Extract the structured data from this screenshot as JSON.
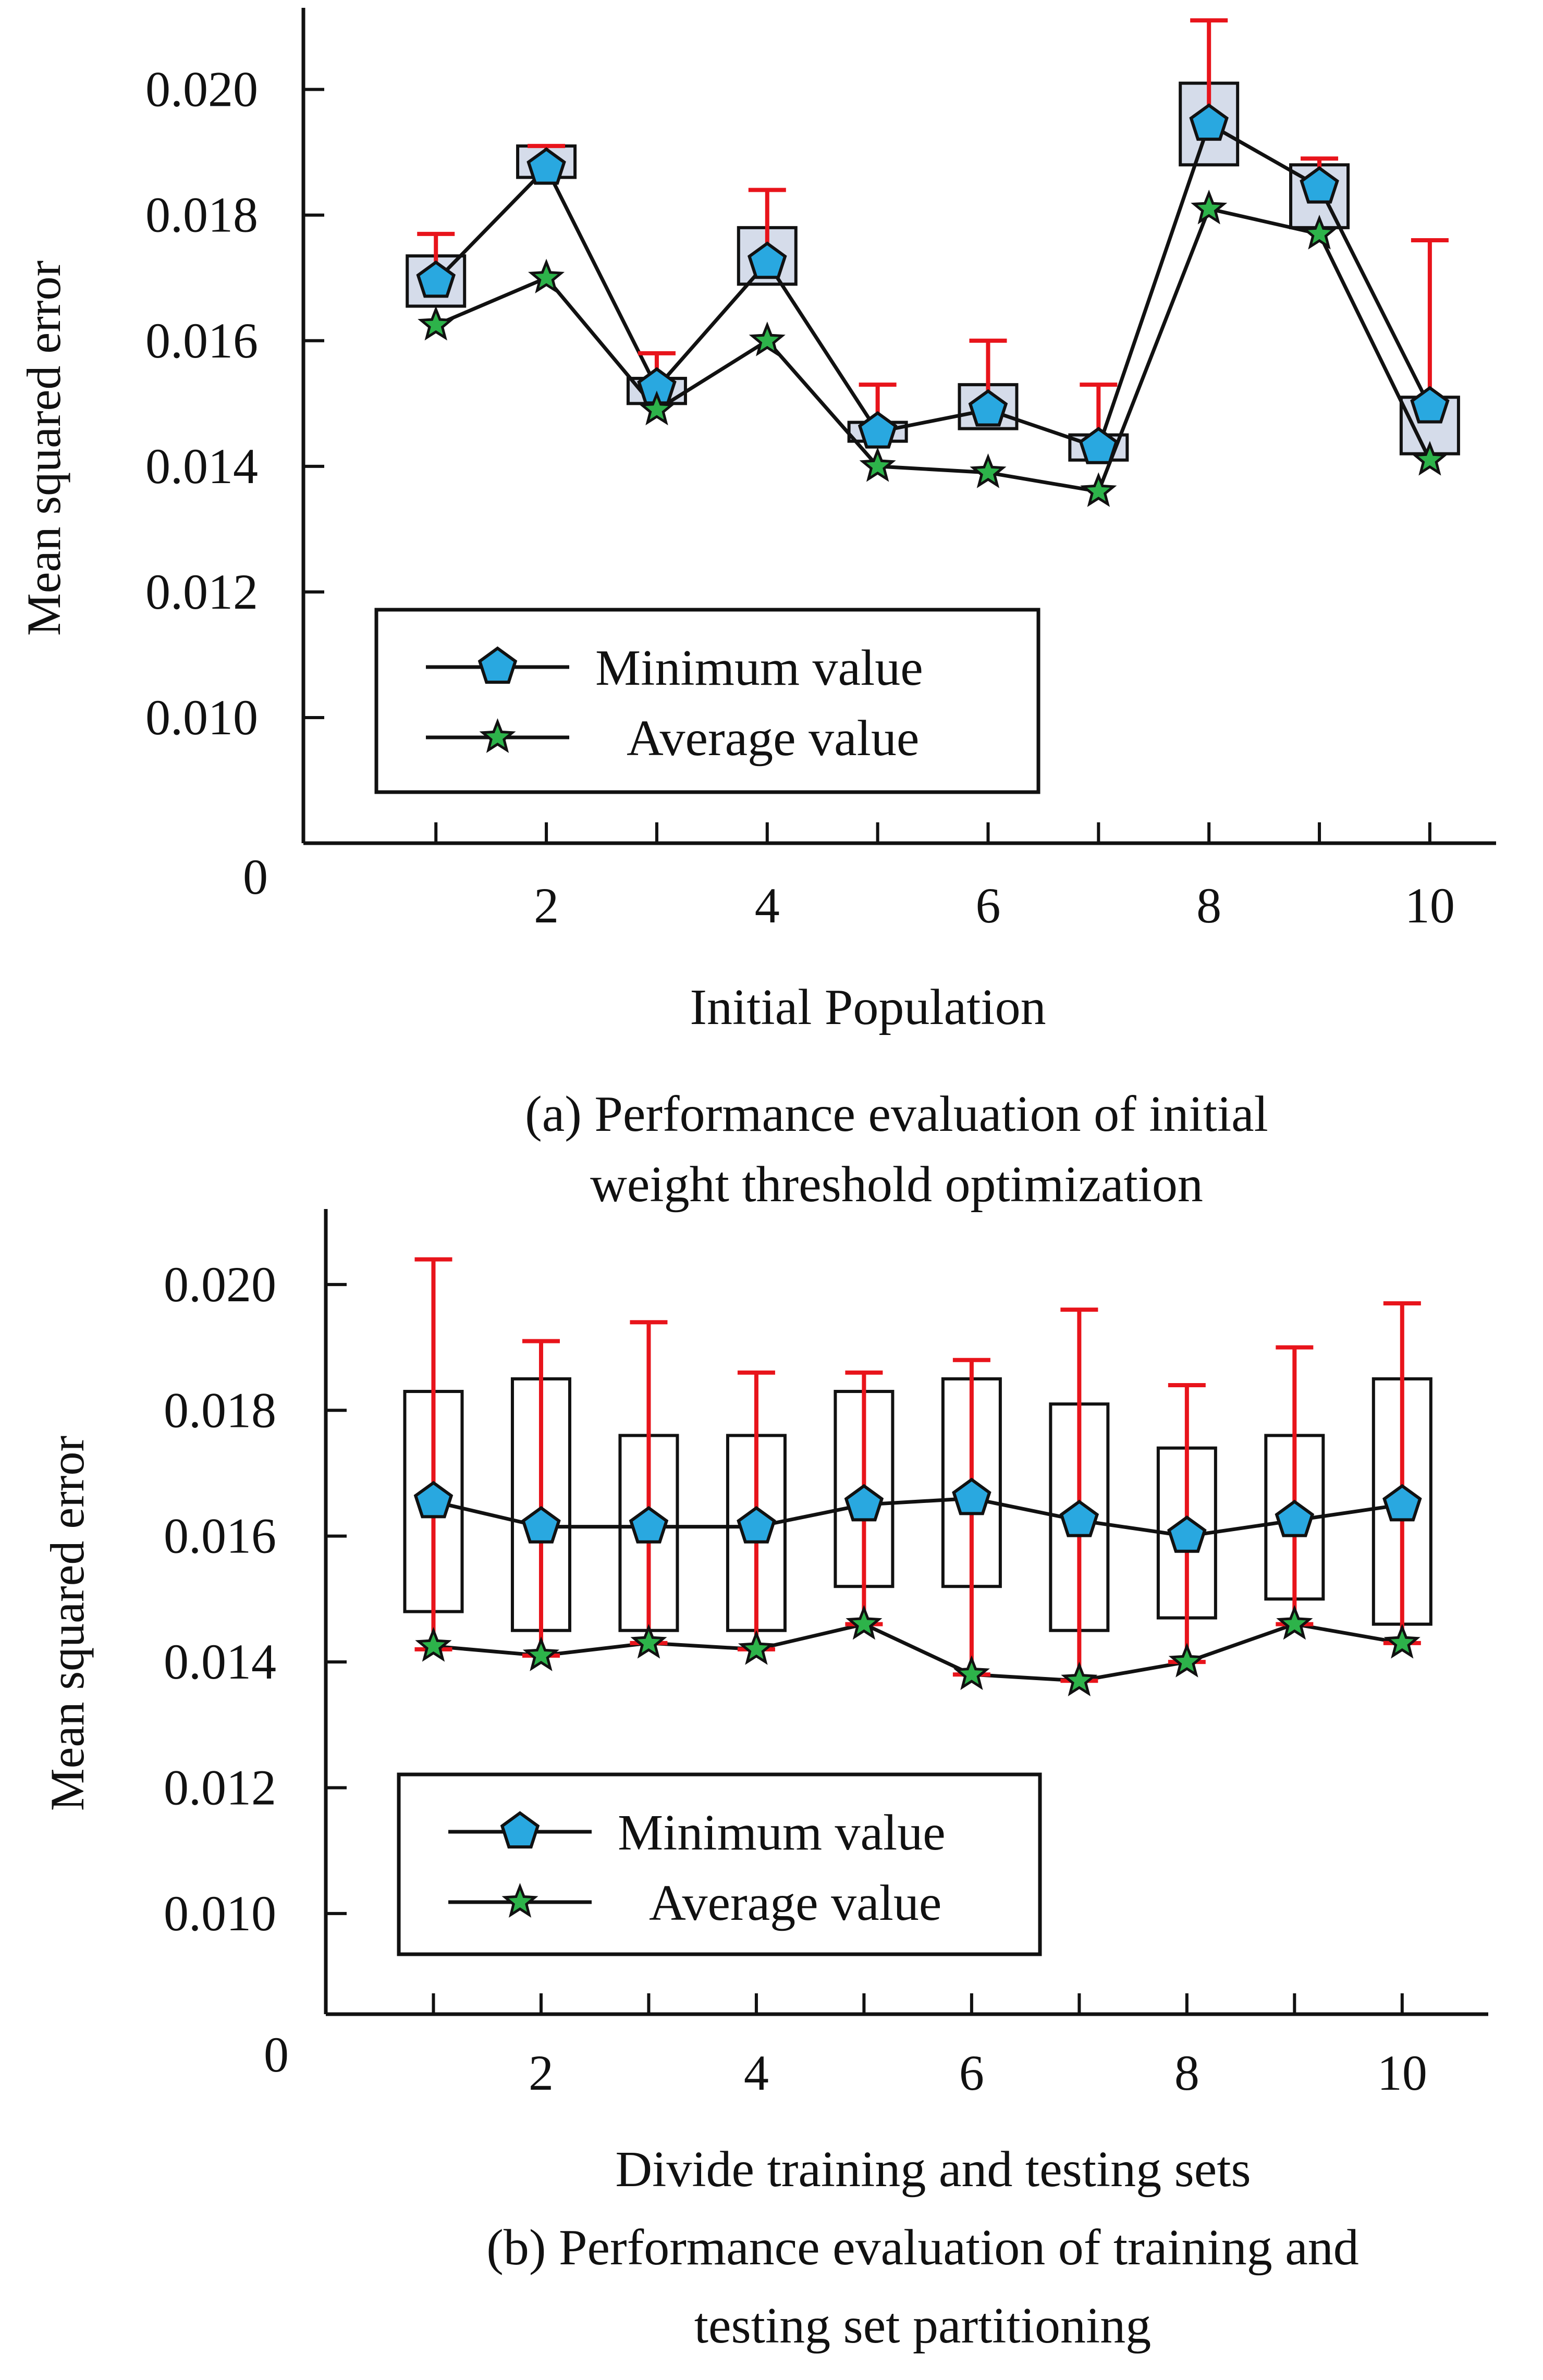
{
  "chart_data": [
    {
      "type": "line",
      "xlabel": "Initial Population",
      "ylabel": "Mean squared error",
      "caption_lines": [
        "(a) Performance evaluation of initial",
        "weight threshold optimization"
      ],
      "x": [
        1,
        2,
        3,
        4,
        5,
        6,
        7,
        8,
        9,
        10
      ],
      "x_ticks": [
        2,
        4,
        6,
        8,
        10
      ],
      "y_ticks": [
        0.01,
        0.012,
        0.014,
        0.016,
        0.018,
        0.02
      ],
      "origin_label": "0",
      "ylim": [
        0.008,
        0.0213
      ],
      "xlim": [
        0,
        10.8
      ],
      "grid": false,
      "legend_position": "lower-left",
      "series": [
        {
          "name": "Minimum value",
          "marker": "pentagon",
          "values": [
            0.01695,
            0.01875,
            0.01525,
            0.01725,
            0.01455,
            0.0149,
            0.0143,
            0.01945,
            0.01845,
            0.01495
          ]
        },
        {
          "name": "Average value",
          "marker": "star",
          "values": [
            0.01625,
            0.017,
            0.0149,
            0.016,
            0.014,
            0.0139,
            0.0136,
            0.0181,
            0.0177,
            0.0141
          ]
        }
      ],
      "boxes": [
        [
          0.01655,
          0.01735
        ],
        [
          0.0186,
          0.0191
        ],
        [
          0.015,
          0.0154
        ],
        [
          0.0169,
          0.0178
        ],
        [
          0.0144,
          0.0147
        ],
        [
          0.0146,
          0.0153
        ],
        [
          0.0141,
          0.0145
        ],
        [
          0.0188,
          0.0201
        ],
        [
          0.0178,
          0.0188
        ],
        [
          0.0142,
          0.0151
        ]
      ],
      "error_bar_top": [
        0.0177,
        0.0191,
        0.0158,
        0.0184,
        0.0153,
        0.016,
        0.0153,
        0.0211,
        0.0189,
        0.0176
      ],
      "colors": {
        "marker_fill": "#29a8e0",
        "star_fill": "#2db34a",
        "error_bar": "#e8141b",
        "box_fill": "#d5dcea",
        "line": "#111111"
      }
    },
    {
      "type": "line",
      "xlabel": "Divide training and testing sets",
      "ylabel": "Mean squared error",
      "caption_lines": [
        "(b) Performance evaluation of training and",
        "testing set partitioning"
      ],
      "x": [
        1,
        2,
        3,
        4,
        5,
        6,
        7,
        8,
        9,
        10
      ],
      "x_ticks": [
        2,
        4,
        6,
        8,
        10
      ],
      "y_ticks": [
        0.01,
        0.012,
        0.014,
        0.016,
        0.018,
        0.02
      ],
      "origin_label": "0",
      "ylim": [
        0.0084,
        0.0212
      ],
      "xlim": [
        0,
        10.8
      ],
      "grid": false,
      "legend_position": "lower-left",
      "series": [
        {
          "name": "Minimum value",
          "marker": "pentagon",
          "values": [
            0.01655,
            0.01615,
            0.01615,
            0.01615,
            0.0165,
            0.0166,
            0.01625,
            0.016,
            0.01625,
            0.0165
          ]
        },
        {
          "name": "Average value",
          "marker": "star",
          "values": [
            0.01425,
            0.0141,
            0.0143,
            0.0142,
            0.0146,
            0.0138,
            0.0137,
            0.014,
            0.0146,
            0.0143
          ]
        }
      ],
      "boxes": [
        [
          0.0148,
          0.0183
        ],
        [
          0.0145,
          0.0185
        ],
        [
          0.0145,
          0.0176
        ],
        [
          0.0145,
          0.0176
        ],
        [
          0.0152,
          0.0183
        ],
        [
          0.0152,
          0.0185
        ],
        [
          0.0145,
          0.0181
        ],
        [
          0.0147,
          0.0174
        ],
        [
          0.015,
          0.0176
        ],
        [
          0.0146,
          0.0185
        ]
      ],
      "error_bar_top": [
        0.0204,
        0.0191,
        0.0194,
        0.0186,
        0.0186,
        0.0188,
        0.0196,
        0.0184,
        0.019,
        0.0197
      ],
      "error_bar_bottom": [
        0.0142,
        0.0141,
        0.0143,
        0.0142,
        0.0146,
        0.0138,
        0.0137,
        0.014,
        0.0146,
        0.0143
      ],
      "colors": {
        "marker_fill": "#29a8e0",
        "star_fill": "#2db34a",
        "error_bar": "#e8141b",
        "box_fill": "none",
        "line": "#111111"
      }
    }
  ]
}
